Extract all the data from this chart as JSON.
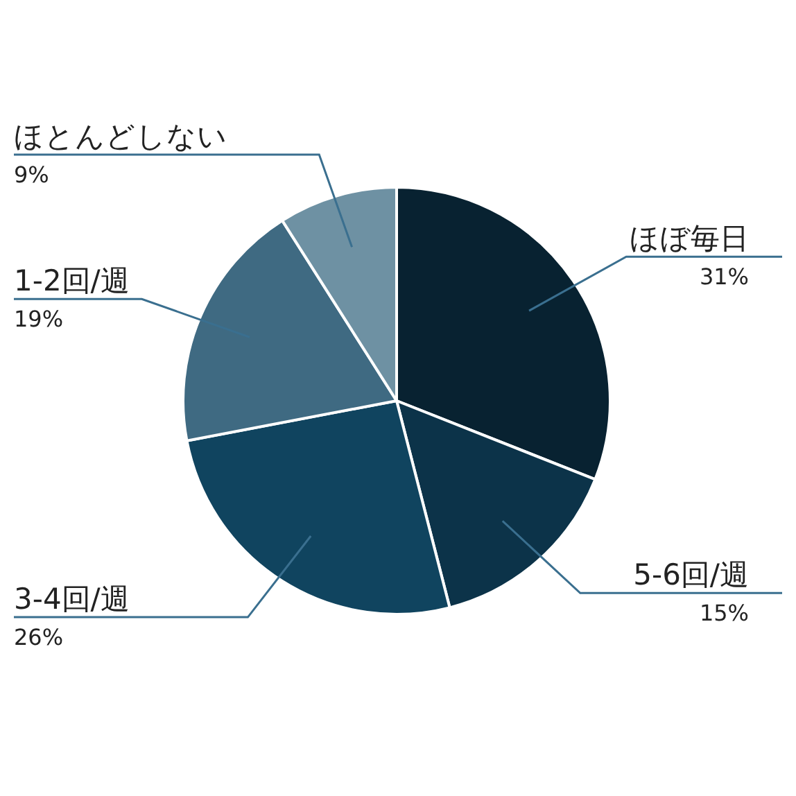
{
  "chart_data": {
    "type": "pie",
    "categories": [
      "ほぼ毎日",
      "5-6回/週",
      "3-4回/週",
      "1-2回/週",
      "ほとんどしない"
    ],
    "values": [
      31,
      15,
      26,
      19,
      9
    ],
    "value_labels": [
      "31%",
      "15%",
      "26%",
      "19%",
      "9%"
    ],
    "colors": [
      "#082231",
      "#0c3349",
      "#10445f",
      "#3f6a82",
      "#6e91a3"
    ]
  }
}
